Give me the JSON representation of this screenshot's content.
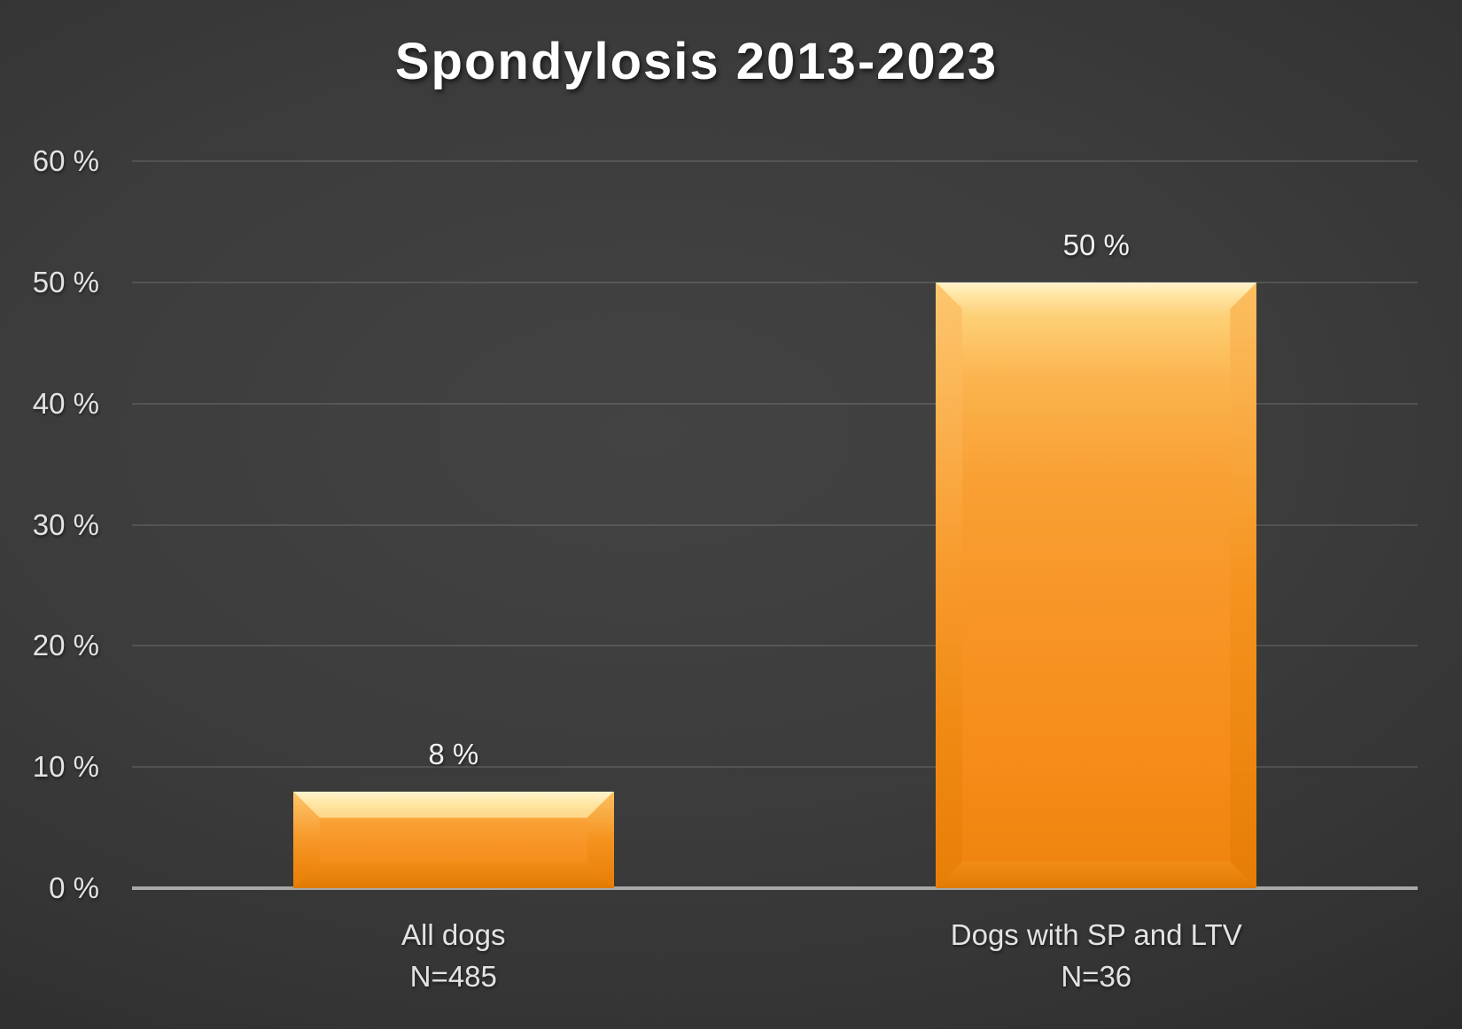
{
  "chart_data": {
    "type": "bar",
    "title": "Spondylosis 2013-2023",
    "xlabel": "",
    "ylabel": "",
    "ylim": [
      0,
      60
    ],
    "ytick_interval": 10,
    "grid": true,
    "legend": false,
    "yticks": [
      {
        "value": 0,
        "label": "0 %"
      },
      {
        "value": 10,
        "label": "10 %"
      },
      {
        "value": 20,
        "label": "20 %"
      },
      {
        "value": 30,
        "label": "30 %"
      },
      {
        "value": 40,
        "label": "40 %"
      },
      {
        "value": 50,
        "label": "50 %"
      },
      {
        "value": 60,
        "label": "60 %"
      }
    ],
    "categories": [
      {
        "label": "All dogs",
        "n_label": "N=485",
        "value": 8,
        "data_label": "8 %"
      },
      {
        "label": "Dogs with SP and LTV",
        "n_label": "N=36",
        "value": 50,
        "data_label": "50 %"
      }
    ],
    "colors": {
      "bar_base": "#F7941E",
      "bar_highlight": "#FFF2C8",
      "bar_shadow": "#E07A02",
      "title_text": "#FFFFFF",
      "axis_text": "#E3E3E3",
      "data_label_text": "#F1F1F1",
      "gridline": "#4F4F4F",
      "axis_line": "#A8A8A8",
      "background_center": "#434343",
      "background_edge": "#222222"
    }
  }
}
